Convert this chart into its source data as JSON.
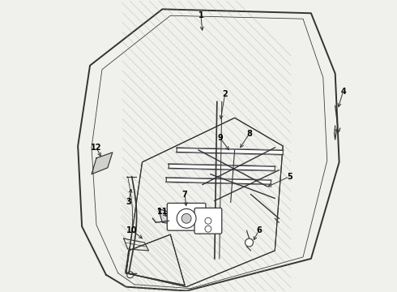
{
  "bg_color": "#f0f0ec",
  "line_color": "#333333",
  "label_color": "#000000",
  "lw_main": 1.4,
  "lw_thin": 0.8,
  "lw_hatch": 0.5
}
